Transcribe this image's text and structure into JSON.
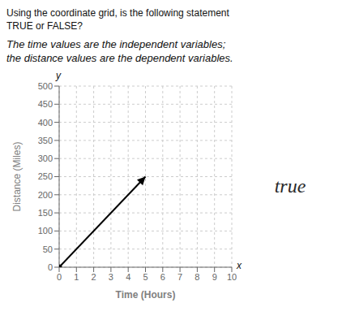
{
  "chart_data": {
    "type": "line",
    "title": [
      "Using the coordinate grid, is the following statement",
      "TRUE or FALSE?"
    ],
    "subtitle": [
      "The time values are the independent variables;",
      "the distance values are the dependent variables."
    ],
    "xlabel": "Time (Hours)",
    "ylabel": "Distance (Miles)",
    "annotations": [
      "x",
      "y",
      "true"
    ],
    "x": [
      0,
      5
    ],
    "values": [
      0,
      250
    ],
    "color": "#000000",
    "xlim": [
      0,
      10
    ],
    "ylim": [
      0,
      500
    ],
    "xticks": [
      0,
      1,
      2,
      3,
      4,
      5,
      6,
      7,
      8,
      9,
      10
    ],
    "yticks": [
      0,
      50,
      100,
      150,
      200,
      250,
      300,
      350,
      400,
      450,
      500
    ],
    "grid": true
  }
}
